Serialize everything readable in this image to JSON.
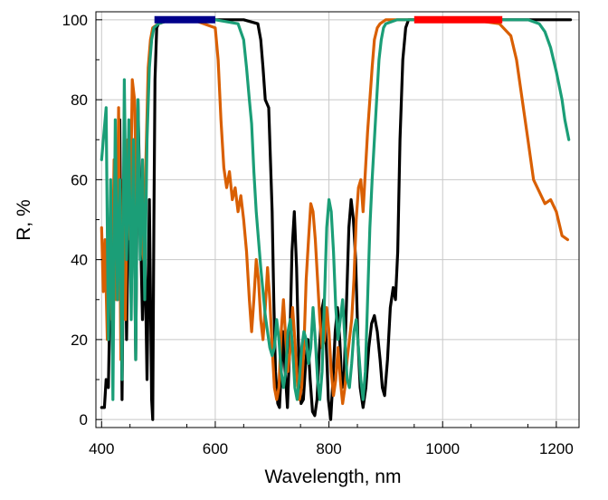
{
  "chart_data": {
    "type": "line",
    "title": "",
    "xlabel": "Wavelength, nm",
    "ylabel": "R, %",
    "xlim": [
      390,
      1240
    ],
    "ylim": [
      -2,
      102
    ],
    "x_ticks": [
      400,
      600,
      800,
      1000,
      1200
    ],
    "y_ticks": [
      0,
      20,
      40,
      60,
      80,
      100
    ],
    "grid": true,
    "series": [
      {
        "color": "#000000",
        "points": [
          [
            400,
            3
          ],
          [
            405,
            3
          ],
          [
            408,
            10
          ],
          [
            412,
            8
          ],
          [
            416,
            40
          ],
          [
            420,
            20
          ],
          [
            424,
            60
          ],
          [
            428,
            30
          ],
          [
            432,
            75
          ],
          [
            436,
            5
          ],
          [
            440,
            70
          ],
          [
            444,
            20
          ],
          [
            448,
            60
          ],
          [
            452,
            35
          ],
          [
            456,
            70
          ],
          [
            460,
            15
          ],
          [
            464,
            80
          ],
          [
            468,
            50
          ],
          [
            472,
            25
          ],
          [
            476,
            45
          ],
          [
            480,
            10
          ],
          [
            484,
            55
          ],
          [
            488,
            5
          ],
          [
            490,
            0
          ],
          [
            492,
            50
          ],
          [
            494,
            85
          ],
          [
            497,
            98
          ],
          [
            500,
            99
          ],
          [
            520,
            100
          ],
          [
            560,
            100
          ],
          [
            600,
            100
          ],
          [
            620,
            100
          ],
          [
            650,
            100
          ],
          [
            675,
            99
          ],
          [
            680,
            95
          ],
          [
            684,
            88
          ],
          [
            688,
            80
          ],
          [
            694,
            78
          ],
          [
            700,
            52
          ],
          [
            703,
            30
          ],
          [
            706,
            12
          ],
          [
            710,
            4
          ],
          [
            713,
            3
          ],
          [
            716,
            12
          ],
          [
            719,
            22
          ],
          [
            723,
            12
          ],
          [
            727,
            3
          ],
          [
            731,
            18
          ],
          [
            735,
            42
          ],
          [
            739,
            52
          ],
          [
            743,
            38
          ],
          [
            747,
            15
          ],
          [
            751,
            4
          ],
          [
            755,
            5
          ],
          [
            759,
            14
          ],
          [
            763,
            20
          ],
          [
            767,
            10
          ],
          [
            771,
            2
          ],
          [
            775,
            1
          ],
          [
            779,
            5
          ],
          [
            783,
            17
          ],
          [
            787,
            27
          ],
          [
            791,
            30
          ],
          [
            795,
            20
          ],
          [
            799,
            5
          ],
          [
            803,
            0
          ],
          [
            807,
            10
          ],
          [
            811,
            22
          ],
          [
            815,
            28
          ],
          [
            819,
            20
          ],
          [
            823,
            8
          ],
          [
            827,
            12
          ],
          [
            831,
            30
          ],
          [
            835,
            48
          ],
          [
            839,
            55
          ],
          [
            843,
            50
          ],
          [
            847,
            40
          ],
          [
            851,
            20
          ],
          [
            855,
            8
          ],
          [
            860,
            3
          ],
          [
            865,
            8
          ],
          [
            870,
            18
          ],
          [
            875,
            24
          ],
          [
            880,
            26
          ],
          [
            885,
            22
          ],
          [
            890,
            15
          ],
          [
            894,
            8
          ],
          [
            898,
            6
          ],
          [
            903,
            15
          ],
          [
            908,
            28
          ],
          [
            913,
            33
          ],
          [
            917,
            30
          ],
          [
            921,
            42
          ],
          [
            925,
            70
          ],
          [
            930,
            90
          ],
          [
            935,
            98
          ],
          [
            940,
            100
          ],
          [
            1000,
            100
          ],
          [
            1100,
            100
          ],
          [
            1150,
            100
          ],
          [
            1200,
            100
          ],
          [
            1225,
            100
          ]
        ]
      },
      {
        "color": "#d95f02",
        "points": [
          [
            400,
            48
          ],
          [
            403,
            32
          ],
          [
            406,
            45
          ],
          [
            410,
            20
          ],
          [
            414,
            50
          ],
          [
            418,
            25
          ],
          [
            422,
            65
          ],
          [
            426,
            30
          ],
          [
            430,
            78
          ],
          [
            434,
            15
          ],
          [
            438,
            60
          ],
          [
            442,
            25
          ],
          [
            446,
            70
          ],
          [
            450,
            45
          ],
          [
            454,
            85
          ],
          [
            458,
            80
          ],
          [
            462,
            52
          ],
          [
            466,
            55
          ],
          [
            470,
            45
          ],
          [
            474,
            40
          ],
          [
            478,
            65
          ],
          [
            482,
            88
          ],
          [
            486,
            95
          ],
          [
            490,
            98
          ],
          [
            500,
            99
          ],
          [
            520,
            100
          ],
          [
            560,
            100
          ],
          [
            600,
            98
          ],
          [
            605,
            90
          ],
          [
            610,
            75
          ],
          [
            615,
            63
          ],
          [
            620,
            58
          ],
          [
            625,
            62
          ],
          [
            630,
            55
          ],
          [
            635,
            58
          ],
          [
            640,
            52
          ],
          [
            645,
            56
          ],
          [
            650,
            50
          ],
          [
            655,
            42
          ],
          [
            660,
            30
          ],
          [
            664,
            22
          ],
          [
            668,
            30
          ],
          [
            672,
            40
          ],
          [
            676,
            35
          ],
          [
            680,
            25
          ],
          [
            684,
            20
          ],
          [
            688,
            28
          ],
          [
            692,
            38
          ],
          [
            696,
            30
          ],
          [
            700,
            18
          ],
          [
            704,
            8
          ],
          [
            708,
            5
          ],
          [
            712,
            8
          ],
          [
            716,
            22
          ],
          [
            720,
            30
          ],
          [
            724,
            20
          ],
          [
            728,
            12
          ],
          [
            732,
            18
          ],
          [
            736,
            28
          ],
          [
            740,
            20
          ],
          [
            744,
            10
          ],
          [
            748,
            5
          ],
          [
            752,
            8
          ],
          [
            756,
            18
          ],
          [
            760,
            35
          ],
          [
            764,
            45
          ],
          [
            768,
            54
          ],
          [
            772,
            52
          ],
          [
            776,
            45
          ],
          [
            780,
            35
          ],
          [
            784,
            25
          ],
          [
            788,
            18
          ],
          [
            792,
            20
          ],
          [
            796,
            28
          ],
          [
            800,
            22
          ],
          [
            804,
            12
          ],
          [
            808,
            6
          ],
          [
            812,
            10
          ],
          [
            816,
            18
          ],
          [
            820,
            10
          ],
          [
            824,
            4
          ],
          [
            828,
            8
          ],
          [
            832,
            15
          ],
          [
            836,
            20
          ],
          [
            840,
            25
          ],
          [
            844,
            35
          ],
          [
            848,
            50
          ],
          [
            852,
            58
          ],
          [
            856,
            60
          ],
          [
            860,
            52
          ],
          [
            864,
            62
          ],
          [
            868,
            72
          ],
          [
            872,
            80
          ],
          [
            876,
            88
          ],
          [
            880,
            95
          ],
          [
            885,
            98
          ],
          [
            890,
            99
          ],
          [
            900,
            100
          ],
          [
            960,
            100
          ],
          [
            1000,
            100
          ],
          [
            1050,
            100
          ],
          [
            1100,
            99
          ],
          [
            1120,
            96
          ],
          [
            1130,
            90
          ],
          [
            1140,
            80
          ],
          [
            1150,
            70
          ],
          [
            1160,
            60
          ],
          [
            1170,
            57
          ],
          [
            1180,
            54
          ],
          [
            1190,
            55
          ],
          [
            1200,
            52
          ],
          [
            1210,
            46
          ],
          [
            1220,
            45
          ]
        ]
      },
      {
        "color": "#1b9e77",
        "points": [
          [
            400,
            65
          ],
          [
            405,
            73
          ],
          [
            408,
            78
          ],
          [
            412,
            20
          ],
          [
            416,
            60
          ],
          [
            420,
            5
          ],
          [
            424,
            75
          ],
          [
            428,
            30
          ],
          [
            432,
            60
          ],
          [
            436,
            10
          ],
          [
            440,
            85
          ],
          [
            444,
            40
          ],
          [
            448,
            75
          ],
          [
            452,
            25
          ],
          [
            456,
            70
          ],
          [
            460,
            15
          ],
          [
            464,
            80
          ],
          [
            468,
            40
          ],
          [
            472,
            65
          ],
          [
            476,
            30
          ],
          [
            480,
            70
          ],
          [
            484,
            88
          ],
          [
            488,
            95
          ],
          [
            492,
            98
          ],
          [
            500,
            99
          ],
          [
            520,
            100
          ],
          [
            560,
            100
          ],
          [
            600,
            100
          ],
          [
            640,
            99
          ],
          [
            645,
            97
          ],
          [
            650,
            95
          ],
          [
            655,
            88
          ],
          [
            660,
            80
          ],
          [
            664,
            74
          ],
          [
            668,
            62
          ],
          [
            672,
            52
          ],
          [
            676,
            45
          ],
          [
            680,
            38
          ],
          [
            684,
            32
          ],
          [
            688,
            26
          ],
          [
            692,
            22
          ],
          [
            696,
            18
          ],
          [
            700,
            16
          ],
          [
            704,
            18
          ],
          [
            708,
            25
          ],
          [
            712,
            20
          ],
          [
            716,
            12
          ],
          [
            720,
            8
          ],
          [
            724,
            12
          ],
          [
            728,
            22
          ],
          [
            732,
            25
          ],
          [
            736,
            18
          ],
          [
            740,
            8
          ],
          [
            744,
            5
          ],
          [
            748,
            10
          ],
          [
            752,
            18
          ],
          [
            756,
            22
          ],
          [
            760,
            20
          ],
          [
            764,
            14
          ],
          [
            768,
            18
          ],
          [
            772,
            28
          ],
          [
            776,
            20
          ],
          [
            780,
            10
          ],
          [
            784,
            5
          ],
          [
            788,
            12
          ],
          [
            792,
            30
          ],
          [
            796,
            48
          ],
          [
            800,
            55
          ],
          [
            804,
            52
          ],
          [
            808,
            42
          ],
          [
            812,
            28
          ],
          [
            816,
            20
          ],
          [
            820,
            25
          ],
          [
            824,
            30
          ],
          [
            828,
            20
          ],
          [
            832,
            10
          ],
          [
            836,
            8
          ],
          [
            840,
            14
          ],
          [
            844,
            22
          ],
          [
            848,
            25
          ],
          [
            852,
            18
          ],
          [
            856,
            10
          ],
          [
            860,
            5
          ],
          [
            864,
            12
          ],
          [
            868,
            30
          ],
          [
            872,
            48
          ],
          [
            876,
            60
          ],
          [
            880,
            70
          ],
          [
            884,
            80
          ],
          [
            888,
            90
          ],
          [
            892,
            95
          ],
          [
            896,
            98
          ],
          [
            900,
            99
          ],
          [
            920,
            100
          ],
          [
            1000,
            100
          ],
          [
            1100,
            100
          ],
          [
            1150,
            100
          ],
          [
            1170,
            99
          ],
          [
            1180,
            97
          ],
          [
            1190,
            93
          ],
          [
            1200,
            87
          ],
          [
            1210,
            80
          ],
          [
            1215,
            75
          ],
          [
            1222,
            70
          ]
        ]
      },
      {
        "color": "#00008b",
        "points": [
          [
            493,
            100
          ],
          [
            600,
            100
          ]
        ]
      },
      {
        "color": "#ff0000",
        "points": [
          [
            950,
            100
          ],
          [
            1105,
            100
          ]
        ]
      }
    ]
  }
}
